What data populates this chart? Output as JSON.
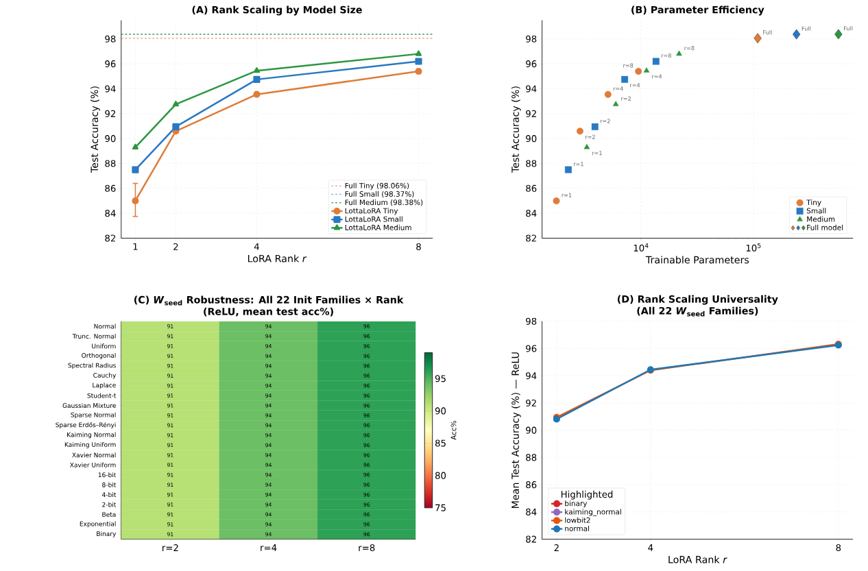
{
  "chart_data": [
    {
      "type": "line",
      "title": "(A) Rank Scaling by Model Size",
      "xlabel": "LoRA Rank *r*",
      "ylabel": "Test Accuracy (%)",
      "x": [
        1,
        2,
        4,
        8
      ],
      "xlim": [
        0.65,
        8.35
      ],
      "xticks": [
        1,
        2,
        4,
        8
      ],
      "ylim": [
        82,
        99.5
      ],
      "yticks": [
        82,
        84,
        86,
        88,
        90,
        92,
        94,
        96,
        98
      ],
      "grid": true,
      "legend": "bottom right",
      "ref_lines": [
        {
          "axis": "y",
          "value": 98.06,
          "label": "Full Tiny (98.06%)",
          "color": "#f2ae8a",
          "line_style": "dashed"
        },
        {
          "axis": "y",
          "value": 98.37,
          "label": "Full Small (98.37%)",
          "color": "#8fb7e0",
          "line_style": "dashed"
        },
        {
          "axis": "y",
          "value": 98.38,
          "label": "Full Medium (98.38%)",
          "color": "#5aaa78",
          "line_style": "dashed"
        }
      ],
      "series": [
        {
          "name": "LottaLoRA Tiny",
          "color": "#e07b39",
          "marker": "circle",
          "values": [
            85.0,
            90.6,
            93.55,
            95.4
          ],
          "errors": [
            [
              83.75,
              86.4
            ],
            null,
            null,
            null
          ]
        },
        {
          "name": "LottaLoRA Small",
          "color": "#2a78c2",
          "marker": "square",
          "values": [
            87.5,
            90.95,
            94.75,
            96.2
          ]
        },
        {
          "name": "LottaLoRA Medium",
          "color": "#2c9640",
          "marker": "triangle",
          "values": [
            89.3,
            92.75,
            95.45,
            96.8
          ]
        }
      ]
    },
    {
      "type": "scatter",
      "title": "(B) Parameter Efficiency",
      "xlabel": "Trainable Parameters",
      "ylabel": "Test Accuracy (%)",
      "log": "x",
      "xlim": [
        1320,
        766000
      ],
      "xticks": [
        {
          "value": 10000,
          "label": "10$^{4}$"
        },
        {
          "value": 100000,
          "label": "10$^{5}$"
        }
      ],
      "ylim": [
        82,
        99.5
      ],
      "yticks": [
        82,
        84,
        86,
        88,
        90,
        92,
        94,
        96,
        98
      ],
      "grid": true,
      "legend": "bottom right",
      "series": [
        {
          "name": "Tiny",
          "color": "#e07b39",
          "marker": "circle",
          "x": [
            1770,
            2870,
            5090,
            9490
          ],
          "values": [
            85.0,
            90.6,
            93.55,
            95.4
          ]
        },
        {
          "name": "Small",
          "color": "#2a78c2",
          "marker": "square",
          "x": [
            2260,
            3900,
            7160,
            13600
          ],
          "values": [
            87.5,
            90.95,
            94.75,
            96.2
          ]
        },
        {
          "name": "Medium",
          "color": "#2c9640",
          "marker": "triangle",
          "x": [
            3300,
            5970,
            11200,
            21800
          ],
          "values": [
            89.3,
            92.75,
            95.45,
            96.8
          ]
        },
        {
          "name": "Full model",
          "marker": "diamond",
          "colors": [
            "#e07b39",
            "#2a78c2",
            "#2c9640"
          ],
          "x": [
            109000,
            241000,
            569000
          ],
          "values": [
            98.06,
            98.37,
            98.38
          ]
        }
      ],
      "annotations": [
        {
          "text": "r=1",
          "x": 1770,
          "y": 85.0
        },
        {
          "text": "r=2",
          "x": 2870,
          "y": 90.6
        },
        {
          "text": "r=4",
          "x": 5090,
          "y": 93.55
        },
        {
          "text": "r=8",
          "x": 9490,
          "y": 95.4
        },
        {
          "text": "r=1",
          "x": 2260,
          "y": 87.5
        },
        {
          "text": "r=2",
          "x": 3900,
          "y": 90.95
        },
        {
          "text": "r=4",
          "x": 7160,
          "y": 94.75
        },
        {
          "text": "r=8",
          "x": 13600,
          "y": 96.2
        },
        {
          "text": "r=1",
          "x": 3300,
          "y": 89.3
        },
        {
          "text": "r=2",
          "x": 5970,
          "y": 92.75
        },
        {
          "text": "r=4",
          "x": 11200,
          "y": 95.45
        },
        {
          "text": "r=8",
          "x": 21800,
          "y": 96.8
        },
        {
          "text": "Full",
          "x": 109000,
          "y": 98.06
        },
        {
          "text": "Full",
          "x": 241000,
          "y": 98.37
        },
        {
          "text": "Full",
          "x": 569000,
          "y": 98.38
        }
      ]
    },
    {
      "type": "heatmap",
      "title": "(C) *W*$_{seed}$ Robustness: All 22 Init Families × Rank",
      "subtitle": "(ReLU, mean test acc%)",
      "categories": [
        "r=2",
        "r=4",
        "r=8"
      ],
      "y_categories": [
        "Normal",
        "Trunc. Normal",
        "Uniform",
        "Orthogonal",
        "Spectral Radius",
        "Cauchy",
        "Laplace",
        "Student-t",
        "Gaussian Mixture",
        "Sparse Normal",
        "Sparse Erdős–Rényi",
        "Kaiming Normal",
        "Kaiming Uniform",
        "Xavier Normal",
        "Xavier Uniform",
        "16-bit",
        "8-bit",
        "4-bit",
        "2-bit",
        "Beta",
        "Exponential",
        "Binary"
      ],
      "cells": [
        [
          91,
          94,
          96
        ],
        [
          91,
          94,
          96
        ],
        [
          91,
          94,
          96
        ],
        [
          91,
          94,
          96
        ],
        [
          91,
          94,
          96
        ],
        [
          91,
          94,
          96
        ],
        [
          91,
          94,
          96
        ],
        [
          91,
          94,
          96
        ],
        [
          91,
          94,
          96
        ],
        [
          91,
          94,
          96
        ],
        [
          91,
          94,
          96
        ],
        [
          91,
          94,
          96
        ],
        [
          91,
          94,
          96
        ],
        [
          91,
          94,
          96
        ],
        [
          91,
          94,
          96
        ],
        [
          91,
          94,
          96
        ],
        [
          91,
          94,
          96
        ],
        [
          91,
          94,
          96
        ],
        [
          91,
          94,
          96
        ],
        [
          91,
          94,
          96
        ],
        [
          91,
          94,
          96
        ],
        [
          91,
          94,
          96
        ]
      ],
      "data_labels": true,
      "clim": [
        75,
        99
      ],
      "cticks": [
        75,
        80,
        85,
        90,
        95
      ],
      "clabel": "Acc%"
    },
    {
      "type": "line",
      "title": "(D) Rank Scaling Universality",
      "subtitle": "(All 22 *W*$_{seed}$ Families)",
      "xlabel": "LoRA Rank *r*",
      "ylabel": "Mean Test Accuracy (%) — ReLU",
      "x": [
        2,
        4,
        8
      ],
      "xlim": [
        1.69,
        8.31
      ],
      "xticks": [
        2,
        4,
        8
      ],
      "ylim": [
        82,
        98
      ],
      "yticks": [
        82,
        84,
        86,
        88,
        90,
        92,
        94,
        96,
        98
      ],
      "grid": true,
      "legend": "bottom left",
      "legend_title": "Highlighted",
      "marker": "circle",
      "series": [
        {
          "name": "binary",
          "color": "#d62728",
          "values": [
            null,
            null,
            null
          ]
        },
        {
          "name": "kaiming_normal",
          "color": "#9467bd",
          "values": [
            null,
            null,
            null
          ]
        },
        {
          "name": "lowbit2",
          "color": "#e6550d",
          "values": [
            90.95,
            94.4,
            96.32
          ]
        },
        {
          "name": "normal",
          "color": "#1f77b4",
          "values": [
            90.82,
            94.45,
            96.25
          ]
        }
      ]
    }
  ]
}
